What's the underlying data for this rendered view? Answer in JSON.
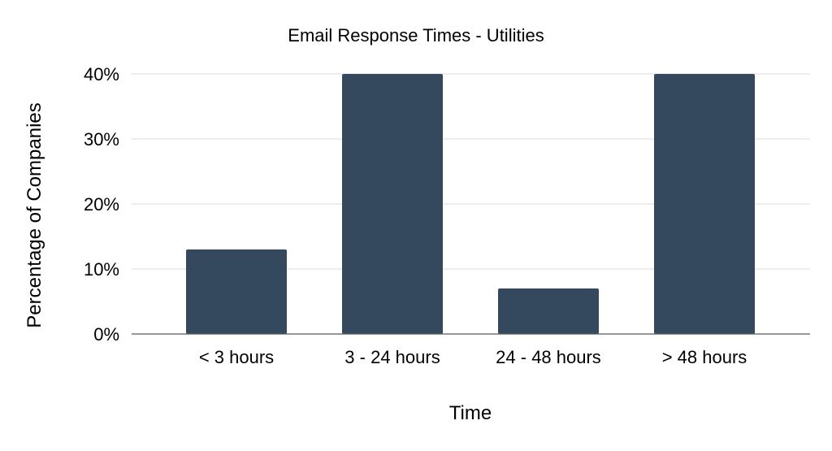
{
  "chart_data": {
    "type": "bar",
    "title": "Email Response Times - Utilities",
    "xlabel": "Time",
    "ylabel": "Percentage of Companies",
    "categories": [
      "< 3 hours",
      "3 - 24 hours",
      "24 - 48 hours",
      "> 48 hours"
    ],
    "values": [
      13,
      40,
      7,
      40
    ],
    "ylim": [
      0,
      40
    ],
    "yticks": [
      0,
      10,
      20,
      30,
      40
    ],
    "ytick_labels": [
      "0%",
      "10%",
      "20%",
      "30%",
      "40%"
    ],
    "grid": true,
    "legend": "none",
    "bar_color": "#34495e"
  }
}
